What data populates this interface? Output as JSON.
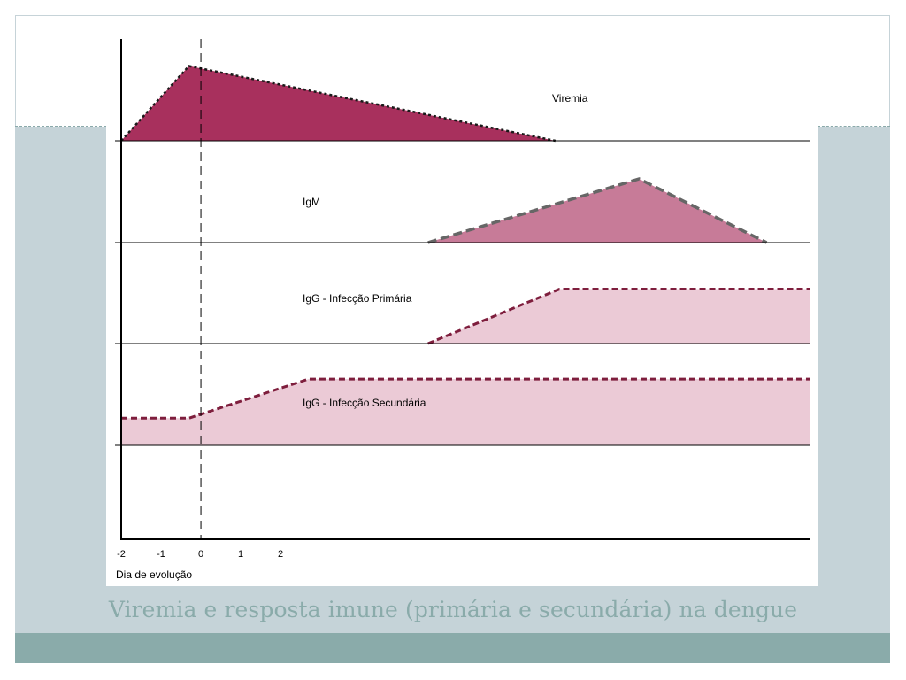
{
  "slide": {
    "caption": "Viremia e resposta imune (primária e secundária) na dengue"
  },
  "colors": {
    "viremia_fill": "#a8305d",
    "igm_fill": "#c77b98",
    "igg_fill": "#ebcad6",
    "igg_line": "#7e1e3d",
    "igm_line": "#666666",
    "band": "#c5d3d8",
    "footer": "#8aabaa",
    "caption": "#8aabaa"
  },
  "chart_data": {
    "type": "area",
    "xlabel": "Dia de evolução",
    "x_ticks": [
      -2,
      -1,
      0,
      1,
      2
    ],
    "x_tick_labels": [
      "-2",
      "-1",
      "0",
      "1",
      "2"
    ],
    "xlim": [
      -2,
      15.3
    ],
    "reference_x": 0,
    "series": [
      {
        "name": "Viremia",
        "x": [
          -2,
          -0.3,
          8.9
        ],
        "y": [
          0,
          0.88,
          0
        ],
        "fill": "viremia_fill",
        "line": "dotted"
      },
      {
        "name": "IgM",
        "x": [
          5.7,
          11,
          14.2
        ],
        "y": [
          0,
          0.75,
          0
        ],
        "fill": "igm_fill",
        "line": "dashed-grey"
      },
      {
        "name": "IgG - Infecção Primária",
        "x": [
          5.7,
          9,
          15.3
        ],
        "y": [
          0,
          0.64,
          0.64
        ],
        "fill": "igg_fill",
        "line": "dashed"
      },
      {
        "name": "IgG - Infecção Secundária",
        "x": [
          -2,
          -0.3,
          2.7,
          15.3
        ],
        "y": [
          0.32,
          0.32,
          0.78,
          0.78
        ],
        "fill": "igg_fill",
        "line": "dashed"
      }
    ]
  }
}
